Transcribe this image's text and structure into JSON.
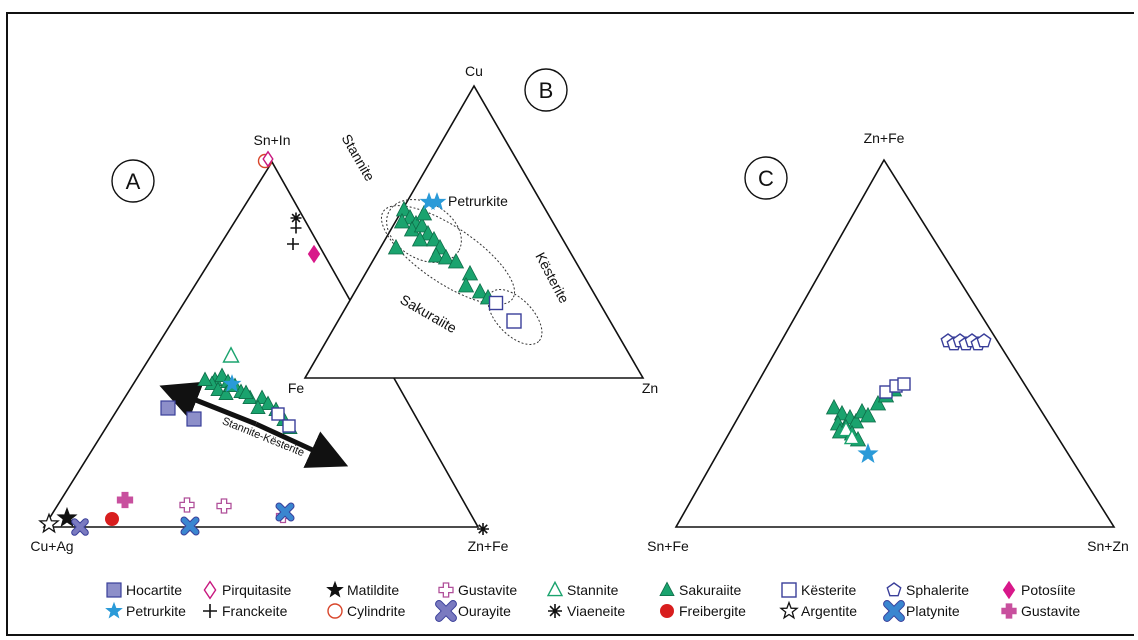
{
  "panels": {
    "A": {
      "letter": "A",
      "vertices": {
        "top": "Sn+In",
        "left": "Cu+Ag",
        "right": "Zn+Fe"
      },
      "arrow_label": "Stannite-Kësterite"
    },
    "B": {
      "letter": "B",
      "vertices": {
        "top": "Cu",
        "left": "Fe",
        "right": "Zn"
      },
      "field_labels": {
        "stannite": "Stannite",
        "kesterite": "Kësterite",
        "sakuraiite": "Sakuraiite",
        "petrurkite": "Petrurkite"
      }
    },
    "C": {
      "letter": "C",
      "vertices": {
        "top": "Zn+Fe",
        "left": "Sn+Fe",
        "right": "Sn+Zn"
      }
    }
  },
  "legend": [
    {
      "label": "Hocartite",
      "symbol": "square-filled",
      "color": "#8d8fc9"
    },
    {
      "label": "Pirquitasite",
      "symbol": "diamond-open",
      "color": "#c8187f"
    },
    {
      "label": "Matildite",
      "symbol": "star-filled",
      "color": "#111111"
    },
    {
      "label": "Gustavite",
      "symbol": "cross-open",
      "color": "#b0509a"
    },
    {
      "label": "Stannite",
      "symbol": "triangle-open",
      "color": "#1aa36e"
    },
    {
      "label": "Sakuraiite",
      "symbol": "triangle-filled",
      "color": "#1aa36e"
    },
    {
      "label": "Kësterite",
      "symbol": "square-open",
      "color": "#3a3f9a"
    },
    {
      "label": "Sphalerite",
      "symbol": "pentagon-open",
      "color": "#3a3f9a"
    },
    {
      "label": "Potosíite",
      "symbol": "diamond-filled",
      "color": "#d8188a"
    },
    {
      "label": "Petrurkite",
      "symbol": "star-filled",
      "color": "#2a9ad8"
    },
    {
      "label": "Franckeite",
      "symbol": "plus",
      "color": "#111111"
    },
    {
      "label": "Cylindrite",
      "symbol": "circle-open",
      "color": "#d8452a"
    },
    {
      "label": "Ourayite",
      "symbol": "x-filled",
      "color": "#7a7ac0"
    },
    {
      "label": "Viaeneite",
      "symbol": "asterisk",
      "color": "#111111"
    },
    {
      "label": "Freibergite",
      "symbol": "circle-filled",
      "color": "#d81e1e"
    },
    {
      "label": "Argentite",
      "symbol": "star-open",
      "color": "#111111"
    },
    {
      "label": "Platynite",
      "symbol": "x-filled",
      "color": "#3a86d0"
    },
    {
      "label": "Gustavite",
      "symbol": "cross-filled",
      "color": "#c8509e"
    }
  ]
}
